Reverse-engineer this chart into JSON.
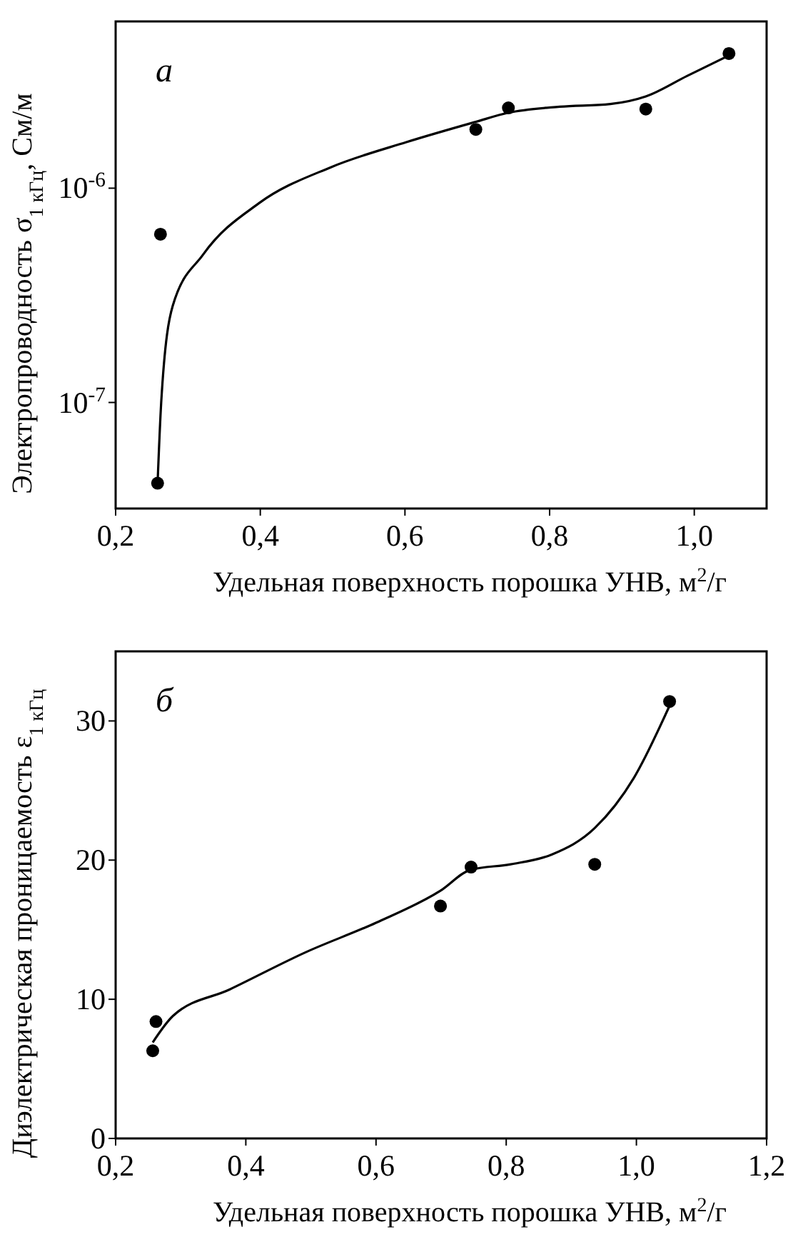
{
  "chart_data": [
    {
      "type": "scatter",
      "xlabel": "Удельная поверхность порошка УНВ, м$^{2}$/г",
      "ylabel": "Электропроводность σ$_{1 кГц}$, См/м",
      "annotations": [
        "а"
      ],
      "log": true,
      "xlim": [
        0.2,
        1.1
      ],
      "xticks": [
        {
          "value": 0.2,
          "label": "0,2"
        },
        {
          "value": 0.4,
          "label": "0,4"
        },
        {
          "value": 0.6,
          "label": "0,6"
        },
        {
          "value": 0.8,
          "label": "0,8"
        },
        {
          "value": 1.0,
          "label": "1,0"
        }
      ],
      "ylim": [
        3.2e-08,
        6e-06
      ],
      "yticks": [
        {
          "value": 1e-07,
          "label": "10$^{-7}$"
        },
        {
          "value": 1e-06,
          "label": "10$^{-6}$"
        }
      ],
      "grid": false,
      "series": [
        {
          "marker": "circle",
          "color": "#000000",
          "x": [
            0.258,
            0.262,
            0.698,
            0.743,
            0.933,
            1.048
          ],
          "values": [
            4.2e-08,
            6.1e-07,
            1.88e-06,
            2.37e-06,
            2.34e-06,
            4.25e-06
          ]
        },
        {
          "type": "line",
          "marker": "none",
          "color": "#000000",
          "x": [
            0.258,
            0.263,
            0.279,
            0.321,
            0.398,
            0.497,
            0.602,
            0.698,
            0.743,
            0.814,
            0.884,
            0.933,
            0.99,
            1.048
          ],
          "values": [
            4.2e-08,
            1e-07,
            2.83e-07,
            4.9e-07,
            8.5e-07,
            1.25e-06,
            1.64e-06,
            2.04e-06,
            2.25e-06,
            2.4e-06,
            2.47e-06,
            2.68e-06,
            3.34e-06,
            4.16e-06
          ]
        }
      ]
    },
    {
      "type": "scatter",
      "xlabel": "Удельная поверхность порошка УНВ, м$^{2}$/г",
      "ylabel": "Диэлектрическая проницаемость ε$_{1 кГц}$",
      "annotations": [
        "б"
      ],
      "xlim": [
        0.2,
        1.2
      ],
      "xticks": [
        {
          "value": 0.2,
          "label": "0,2"
        },
        {
          "value": 0.4,
          "label": "0,4"
        },
        {
          "value": 0.6,
          "label": "0,6"
        },
        {
          "value": 0.8,
          "label": "0,8"
        },
        {
          "value": 1.0,
          "label": "1,0"
        },
        {
          "value": 1.2,
          "label": "1,2"
        }
      ],
      "ylim": [
        0,
        35
      ],
      "yticks": [
        0,
        10,
        20,
        30
      ],
      "grid": false,
      "series": [
        {
          "marker": "circle",
          "color": "#000000",
          "x": [
            0.257,
            0.262,
            0.699,
            0.746,
            0.936,
            1.051
          ],
          "values": [
            6.3,
            8.4,
            16.7,
            19.5,
            19.7,
            31.4
          ]
        },
        {
          "type": "line",
          "marker": "none",
          "color": "#000000",
          "x": [
            0.257,
            0.288,
            0.375,
            0.493,
            0.6,
            0.699,
            0.745,
            0.807,
            0.87,
            0.936,
            0.996,
            1.051
          ],
          "values": [
            6.9,
            8.8,
            10.7,
            13.4,
            15.5,
            17.8,
            19.3,
            19.7,
            20.4,
            22.3,
            25.9,
            31.1
          ]
        }
      ]
    }
  ]
}
